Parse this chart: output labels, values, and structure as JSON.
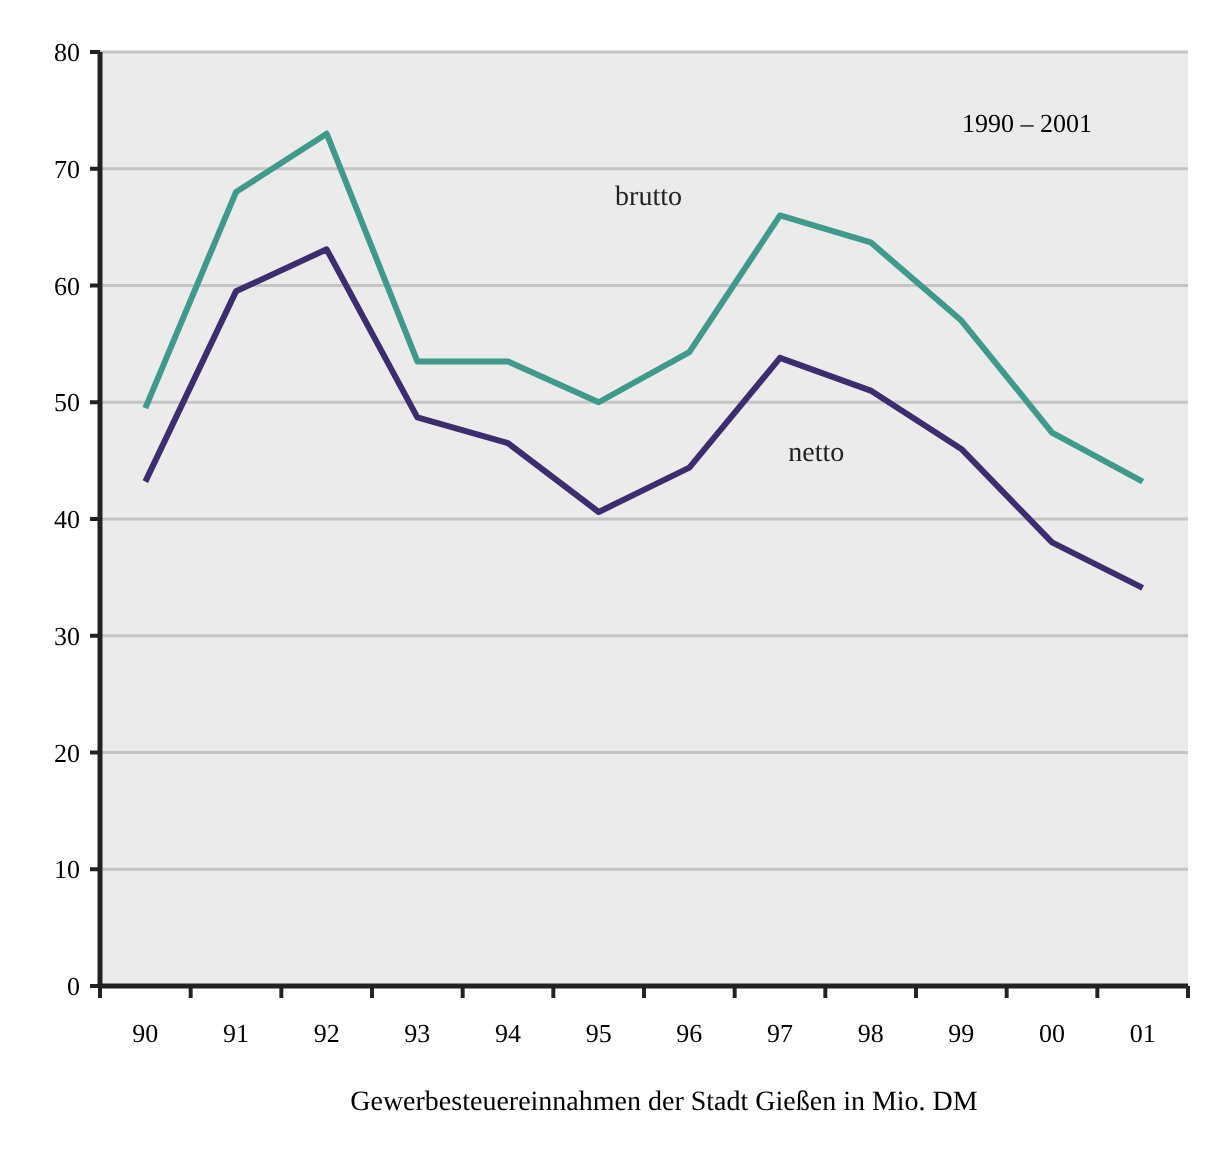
{
  "chart_data": {
    "type": "line",
    "xlabel": "Gewerbesteuereinnahmen der Stadt Gießen in Mio. DM",
    "annotations": [
      "1990 – 2001"
    ],
    "categories": [
      "90",
      "91",
      "92",
      "93",
      "94",
      "95",
      "96",
      "97",
      "98",
      "99",
      "00",
      "01"
    ],
    "series": [
      {
        "name": "brutto",
        "color": "#3f9a8c",
        "values": [
          49.5,
          68,
          73,
          53.5,
          53.5,
          50,
          54.3,
          66,
          63.7,
          57,
          47.4,
          43.2
        ]
      },
      {
        "name": "netto",
        "color": "#3b2d6e",
        "values": [
          43.2,
          59.5,
          63.1,
          48.7,
          46.5,
          40.6,
          44.4,
          53.8,
          51,
          46,
          38,
          34.1
        ]
      }
    ],
    "ylim": [
      0,
      80
    ],
    "yticks": [
      0,
      10,
      20,
      30,
      40,
      50,
      60,
      70,
      80
    ],
    "grid": "y",
    "marker": "none",
    "line_style": "solid"
  }
}
